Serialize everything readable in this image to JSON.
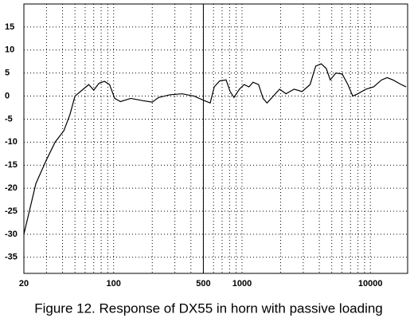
{
  "chart_data": {
    "type": "line",
    "caption": "Figure 12.  Response of DX55 in horn with passive loading",
    "xscale": "log",
    "xlim": [
      20,
      19500
    ],
    "ylim": [
      -38.5,
      20
    ],
    "xticks": [
      20,
      100,
      500,
      1000,
      10000
    ],
    "yticks": [
      15,
      10,
      5,
      0,
      -5,
      -10,
      -15,
      -20,
      -25,
      -30,
      -35
    ],
    "xgrid": [
      30,
      40,
      50,
      60,
      70,
      80,
      90,
      200,
      300,
      400,
      600,
      700,
      800,
      900,
      2000,
      3000,
      4000,
      5000,
      6000,
      7000,
      8000,
      9000
    ],
    "reference_line_x": 500,
    "grid": true,
    "series": [
      {
        "name": "DX55 response",
        "color": "#000000",
        "x": [
          20,
          24.8,
          29.8,
          35,
          41,
          45.7,
          50,
          58,
          64,
          70,
          77,
          85,
          93,
          102,
          113,
          136,
          169,
          200,
          224,
          277,
          342,
          424,
          510,
          565,
          608,
          670,
          752,
          808,
          866,
          954,
          1040,
          1132,
          1218,
          1346,
          1460,
          1565,
          1753,
          1962,
          2202,
          2544,
          2937,
          3390,
          3750,
          4140,
          4530,
          4870,
          5380,
          6030,
          6680,
          7290,
          7980,
          9230,
          10600,
          12200,
          13500,
          15000,
          17400,
          19000
        ],
        "values": [
          -30,
          -19,
          -14,
          -10,
          -7.5,
          -4,
          0,
          1.5,
          2.5,
          1.3,
          2.8,
          3.2,
          2.5,
          -0.5,
          -1.2,
          -0.5,
          -1,
          -1.3,
          -0.3,
          0.3,
          0.5,
          0,
          -1,
          -1.5,
          2,
          3.3,
          3.5,
          1,
          -0.3,
          1.5,
          2.5,
          2,
          3,
          2.5,
          -0.5,
          -1.5,
          0,
          1.5,
          0.5,
          1.5,
          1,
          2.5,
          6.5,
          7,
          6,
          3.5,
          5,
          4.8,
          2.5,
          0,
          0.5,
          1.5,
          2,
          3.5,
          4,
          3.5,
          2.5,
          2
        ]
      }
    ]
  }
}
